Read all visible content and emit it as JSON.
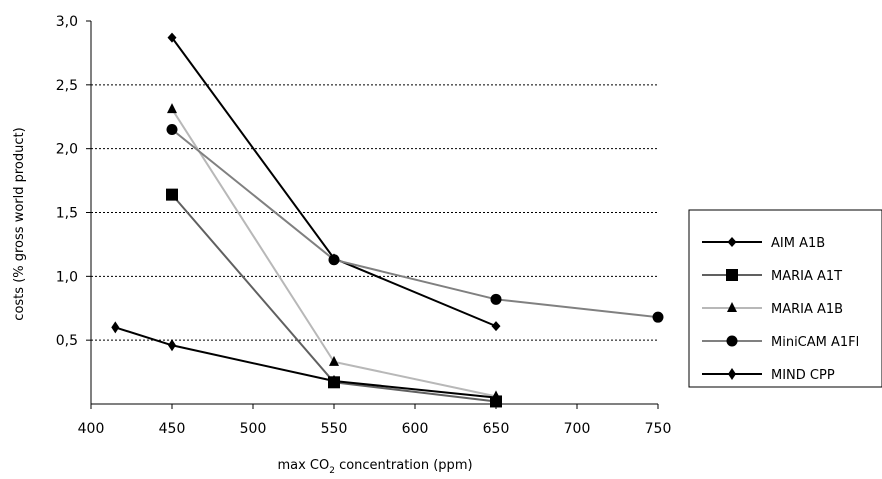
{
  "chart_data": {
    "type": "line",
    "title": "",
    "xlabel": {
      "main": "max CO",
      "subscript": "2",
      "rest": " concentration (ppm)"
    },
    "ylabel": "costs (% gross world product)",
    "xlim": [
      400,
      750
    ],
    "ylim": [
      0,
      3
    ],
    "x_ticks": [
      400,
      450,
      500,
      550,
      600,
      650,
      700,
      750
    ],
    "x_tick_labels": [
      "400",
      "450",
      "500",
      "550",
      "600",
      "650",
      "700",
      "750"
    ],
    "y_ticks": [
      0.5,
      1.0,
      1.5,
      2.0,
      2.5,
      3.0
    ],
    "y_tick_labels": [
      "0,5",
      "1,0",
      "1,5",
      "2,0",
      "2,5",
      "3,0"
    ],
    "grid": "horizontal dotted",
    "legend_position": "right",
    "series": [
      {
        "name": "AIM A1B",
        "marker": "diamond",
        "color": "#000000",
        "points": [
          [
            450,
            2.87
          ],
          [
            550,
            1.14
          ],
          [
            650,
            0.61
          ]
        ]
      },
      {
        "name": "MARIA A1T",
        "marker": "square",
        "color": "#606060",
        "points": [
          [
            450,
            1.64
          ],
          [
            550,
            0.17
          ],
          [
            650,
            0.02
          ]
        ]
      },
      {
        "name": "MARIA A1B",
        "marker": "triangle",
        "color": "#b8b8b8",
        "points": [
          [
            450,
            2.31
          ],
          [
            550,
            0.33
          ],
          [
            650,
            0.06
          ]
        ]
      },
      {
        "name": "MiniCAM A1Fl",
        "marker": "circle",
        "color": "#808080",
        "points": [
          [
            450,
            2.15
          ],
          [
            550,
            1.13
          ],
          [
            650,
            0.82
          ],
          [
            750,
            0.68
          ]
        ]
      },
      {
        "name": "MIND CPP",
        "marker": "thin-diamond",
        "color": "#000000",
        "points": [
          [
            415,
            0.6
          ],
          [
            450,
            0.46
          ],
          [
            550,
            0.18
          ],
          [
            650,
            0.05
          ]
        ]
      }
    ]
  }
}
